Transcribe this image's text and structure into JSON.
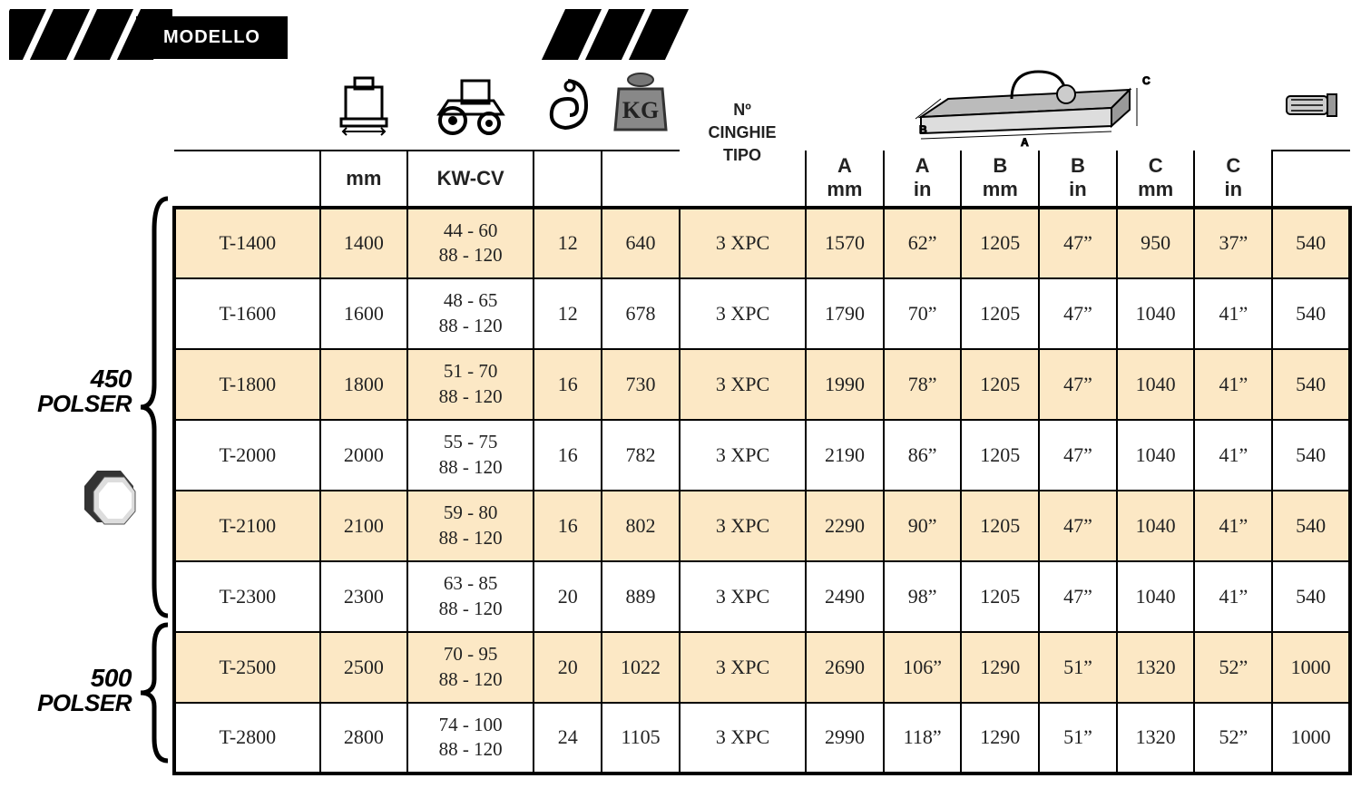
{
  "header": {
    "modello": "MODELLO",
    "belt_header_line1": "Nº",
    "belt_header_line2": "CINGHIE",
    "belt_header_line3": "TIPO"
  },
  "units": {
    "mm": "mm",
    "kwcv": "KW-CV",
    "a_mm": "A mm",
    "a_in": "A in",
    "b_mm": "B mm",
    "b_in": "B in",
    "c_mm": "C mm",
    "c_in": "C in"
  },
  "groups": {
    "g450_num": "450",
    "g450_name": "POLSER",
    "g500_num": "500",
    "g500_name": "POLSER"
  },
  "styling": {
    "alt_row_color": "#fce8c5",
    "border_color": "#000000",
    "text_color": "#222222",
    "font_family_header": "Arial, sans-serif",
    "font_family_body": "Georgia, serif",
    "title_fontsize": 20,
    "cell_fontsize": 22
  },
  "columns": [
    "model",
    "width_mm",
    "kw_cv",
    "hammers",
    "weight_kg",
    "belts",
    "a_mm",
    "a_in",
    "b_mm",
    "b_in",
    "c_mm",
    "c_in",
    "rpm"
  ],
  "rows": [
    {
      "model": "T-1400",
      "width_mm": "1400",
      "kw_line1": "44 - 60",
      "kw_line2": "88 - 120",
      "hammers": "12",
      "weight_kg": "640",
      "belts": "3 XPC",
      "a_mm": "1570",
      "a_in": "62”",
      "b_mm": "1205",
      "b_in": "47”",
      "c_mm": "950",
      "c_in": "37”",
      "rpm": "540"
    },
    {
      "model": "T-1600",
      "width_mm": "1600",
      "kw_line1": "48 - 65",
      "kw_line2": "88 - 120",
      "hammers": "12",
      "weight_kg": "678",
      "belts": "3 XPC",
      "a_mm": "1790",
      "a_in": "70”",
      "b_mm": "1205",
      "b_in": "47”",
      "c_mm": "1040",
      "c_in": "41”",
      "rpm": "540"
    },
    {
      "model": "T-1800",
      "width_mm": "1800",
      "kw_line1": "51 - 70",
      "kw_line2": "88 - 120",
      "hammers": "16",
      "weight_kg": "730",
      "belts": "3 XPC",
      "a_mm": "1990",
      "a_in": "78”",
      "b_mm": "1205",
      "b_in": "47”",
      "c_mm": "1040",
      "c_in": "41”",
      "rpm": "540"
    },
    {
      "model": "T-2000",
      "width_mm": "2000",
      "kw_line1": "55 - 75",
      "kw_line2": "88 - 120",
      "hammers": "16",
      "weight_kg": "782",
      "belts": "3 XPC",
      "a_mm": "2190",
      "a_in": "86”",
      "b_mm": "1205",
      "b_in": "47”",
      "c_mm": "1040",
      "c_in": "41”",
      "rpm": "540"
    },
    {
      "model": "T-2100",
      "width_mm": "2100",
      "kw_line1": "59 - 80",
      "kw_line2": "88 - 120",
      "hammers": "16",
      "weight_kg": "802",
      "belts": "3 XPC",
      "a_mm": "2290",
      "a_in": "90”",
      "b_mm": "1205",
      "b_in": "47”",
      "c_mm": "1040",
      "c_in": "41”",
      "rpm": "540"
    },
    {
      "model": "T-2300",
      "width_mm": "2300",
      "kw_line1": "63 - 85",
      "kw_line2": "88 - 120",
      "hammers": "20",
      "weight_kg": "889",
      "belts": "3 XPC",
      "a_mm": "2490",
      "a_in": "98”",
      "b_mm": "1205",
      "b_in": "47”",
      "c_mm": "1040",
      "c_in": "41”",
      "rpm": "540"
    },
    {
      "model": "T-2500",
      "width_mm": "2500",
      "kw_line1": "70 - 95",
      "kw_line2": "88 - 120",
      "hammers": "20",
      "weight_kg": "1022",
      "belts": "3 XPC",
      "a_mm": "2690",
      "a_in": "106”",
      "b_mm": "1290",
      "b_in": "51”",
      "c_mm": "1320",
      "c_in": "52”",
      "rpm": "1000"
    },
    {
      "model": "T-2800",
      "width_mm": "2800",
      "kw_line1": "74 - 100",
      "kw_line2": "88 - 120",
      "hammers": "24",
      "weight_kg": "1105",
      "belts": "3 XPC",
      "a_mm": "2990",
      "a_in": "118”",
      "b_mm": "1290",
      "b_in": "51”",
      "c_mm": "1320",
      "c_in": "52”",
      "rpm": "1000"
    }
  ]
}
